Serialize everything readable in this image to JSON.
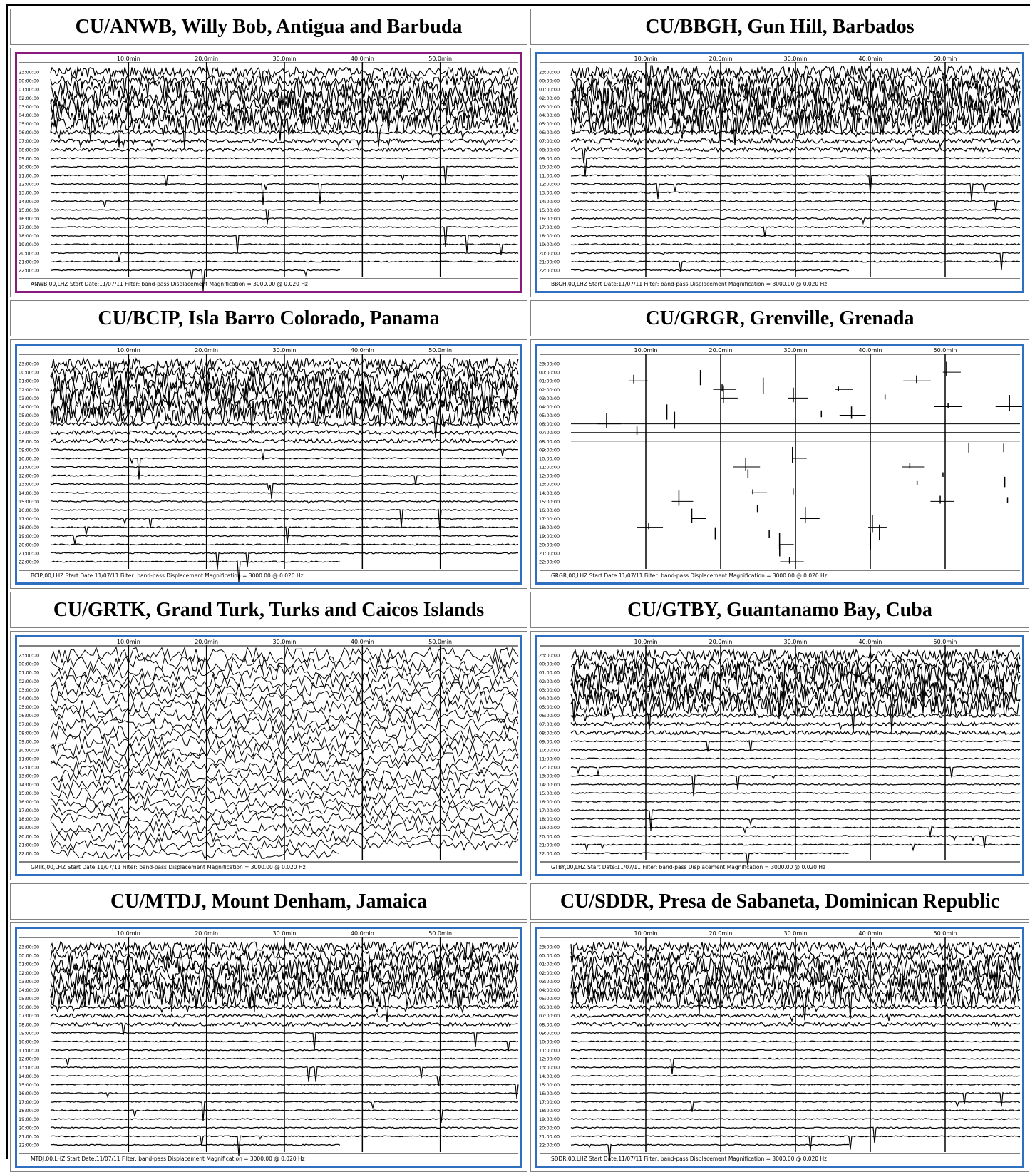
{
  "time_axis": {
    "minutes": [
      "10.0min",
      "20.0min",
      "30.0min",
      "40.0min",
      "50.0min"
    ],
    "hours": [
      "23:00:00",
      "00:00:00",
      "01:00:00",
      "02:00:00",
      "03:00:00",
      "04:00:00",
      "05:00:00",
      "06:00:00",
      "07:00:00",
      "08:00:00",
      "09:00:00",
      "10:00:00",
      "11:00:00",
      "12:00:00",
      "13:00:00",
      "14:00:00",
      "15:00:00",
      "16:00:00",
      "17:00:00",
      "18:00:00",
      "19:00:00",
      "20:00:00",
      "21:00:00",
      "22:00:00"
    ]
  },
  "stations": [
    {
      "title": "CU/ANWB, Willy Bob, Antigua and Barbuda",
      "footer": "ANWB,00,LHZ  Start Date:11/07/11  Filter: band-pass  Displacement Magnification =  3000.00 @ 0.020 Hz",
      "frame_color": "#8b1a7f"
    },
    {
      "title": "CU/BBGH, Gun Hill, Barbados",
      "footer": "BBGH,00,LHZ  Start Date:11/07/11  Filter: band-pass  Displacement Magnification =  3000.00 @ 0.020 Hz",
      "frame_color": "#2f6fc0"
    },
    {
      "title": "CU/BCIP, Isla Barro Colorado, Panama",
      "footer": "BCIP,00,LHZ  Start Date:11/07/11  Filter: band-pass  Displacement Magnification =  3000.00 @ 0.020 Hz",
      "frame_color": "#2f6fc0"
    },
    {
      "title": "CU/GRGR, Grenville, Grenada",
      "footer": "GRGR,00,LHZ  Start Date:11/07/11  Filter: band-pass  Displacement Magnification =  3000.00 @ 0.020 Hz",
      "frame_color": "#2f6fc0"
    },
    {
      "title": "CU/GRTK, Grand Turk, Turks and Caicos Islands",
      "footer": "GRTK,00,LHZ  Start Date:11/07/11  Filter: band-pass  Displacement Magnification =  3000.00 @ 0.020 Hz",
      "frame_color": "#2f6fc0"
    },
    {
      "title": "CU/GTBY, Guantanamo Bay, Cuba",
      "footer": "GTBY,00,LHZ  Start Date:11/07/11  Filter: band-pass  Displacement Magnification =  3000.00 @ 0.020 Hz",
      "frame_color": "#2f6fc0"
    },
    {
      "title": "CU/MTDJ, Mount Denham, Jamaica",
      "footer": "MTDJ,00,LHZ  Start Date:11/07/11  Filter: band-pass  Displacement Magnification =  3000.00 @ 0.020 Hz",
      "frame_color": "#2f6fc0"
    },
    {
      "title": "CU/SDDR, Presa de Sabaneta, Dominican Republic",
      "footer": "SDDR,00,LHZ  Start Date:11/07/11  Filter: band-pass  Displacement Magnification =  3000.00 @ 0.020 Hz",
      "frame_color": "#2f6fc0"
    }
  ]
}
